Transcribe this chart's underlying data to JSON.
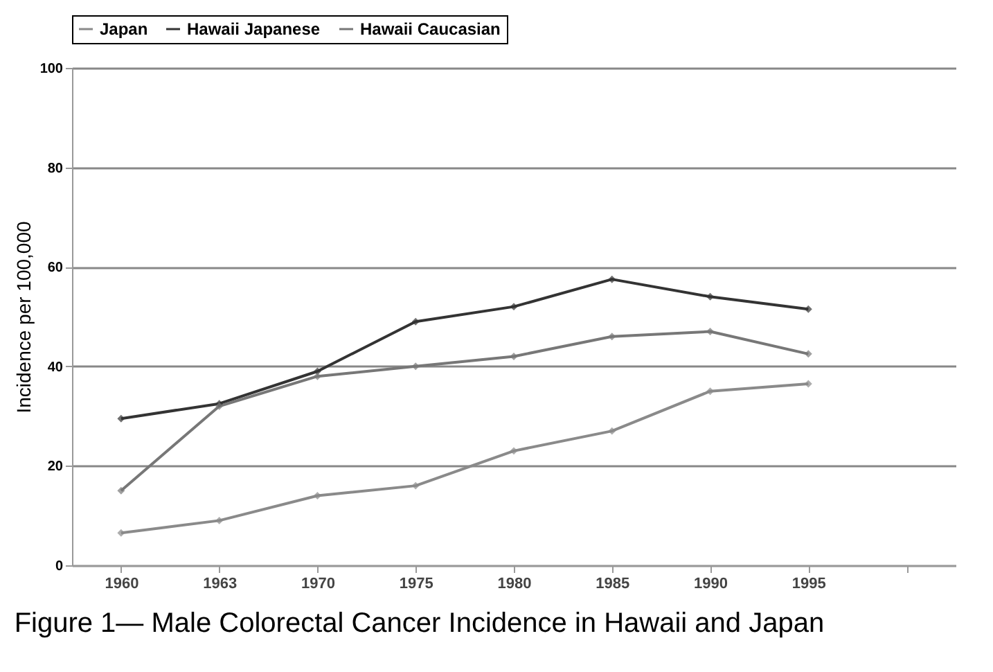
{
  "chart_data": {
    "type": "line",
    "ylabel": "Incidence per 100,000",
    "categories": [
      "1960",
      "1963",
      "1970",
      "1975",
      "1980",
      "1985",
      "1990",
      "1995",
      null
    ],
    "series": [
      {
        "name": "Japan",
        "color": "#8a8a8a",
        "values": [
          6.5,
          9,
          14,
          16,
          23,
          27,
          35,
          36.5,
          null
        ]
      },
      {
        "name": "Hawaii Japanese",
        "color": "#333333",
        "values": [
          29.5,
          32.5,
          39,
          49,
          52,
          57.5,
          54,
          51.5,
          null
        ]
      },
      {
        "name": "Hawaii Caucasian",
        "color": "#777777",
        "values": [
          15,
          32,
          38,
          40,
          42,
          46,
          47,
          42.5,
          null
        ]
      }
    ],
    "ylim": [
      0,
      100
    ],
    "yticks": [
      0,
      20,
      40,
      60,
      80,
      100
    ],
    "grid": "y",
    "legend": "top",
    "marker": "diamond",
    "line_style": "solid",
    "annotations": [
      "Figure 1— Male Colorectal Cancer Incidence in Hawaii and Japan"
    ]
  }
}
